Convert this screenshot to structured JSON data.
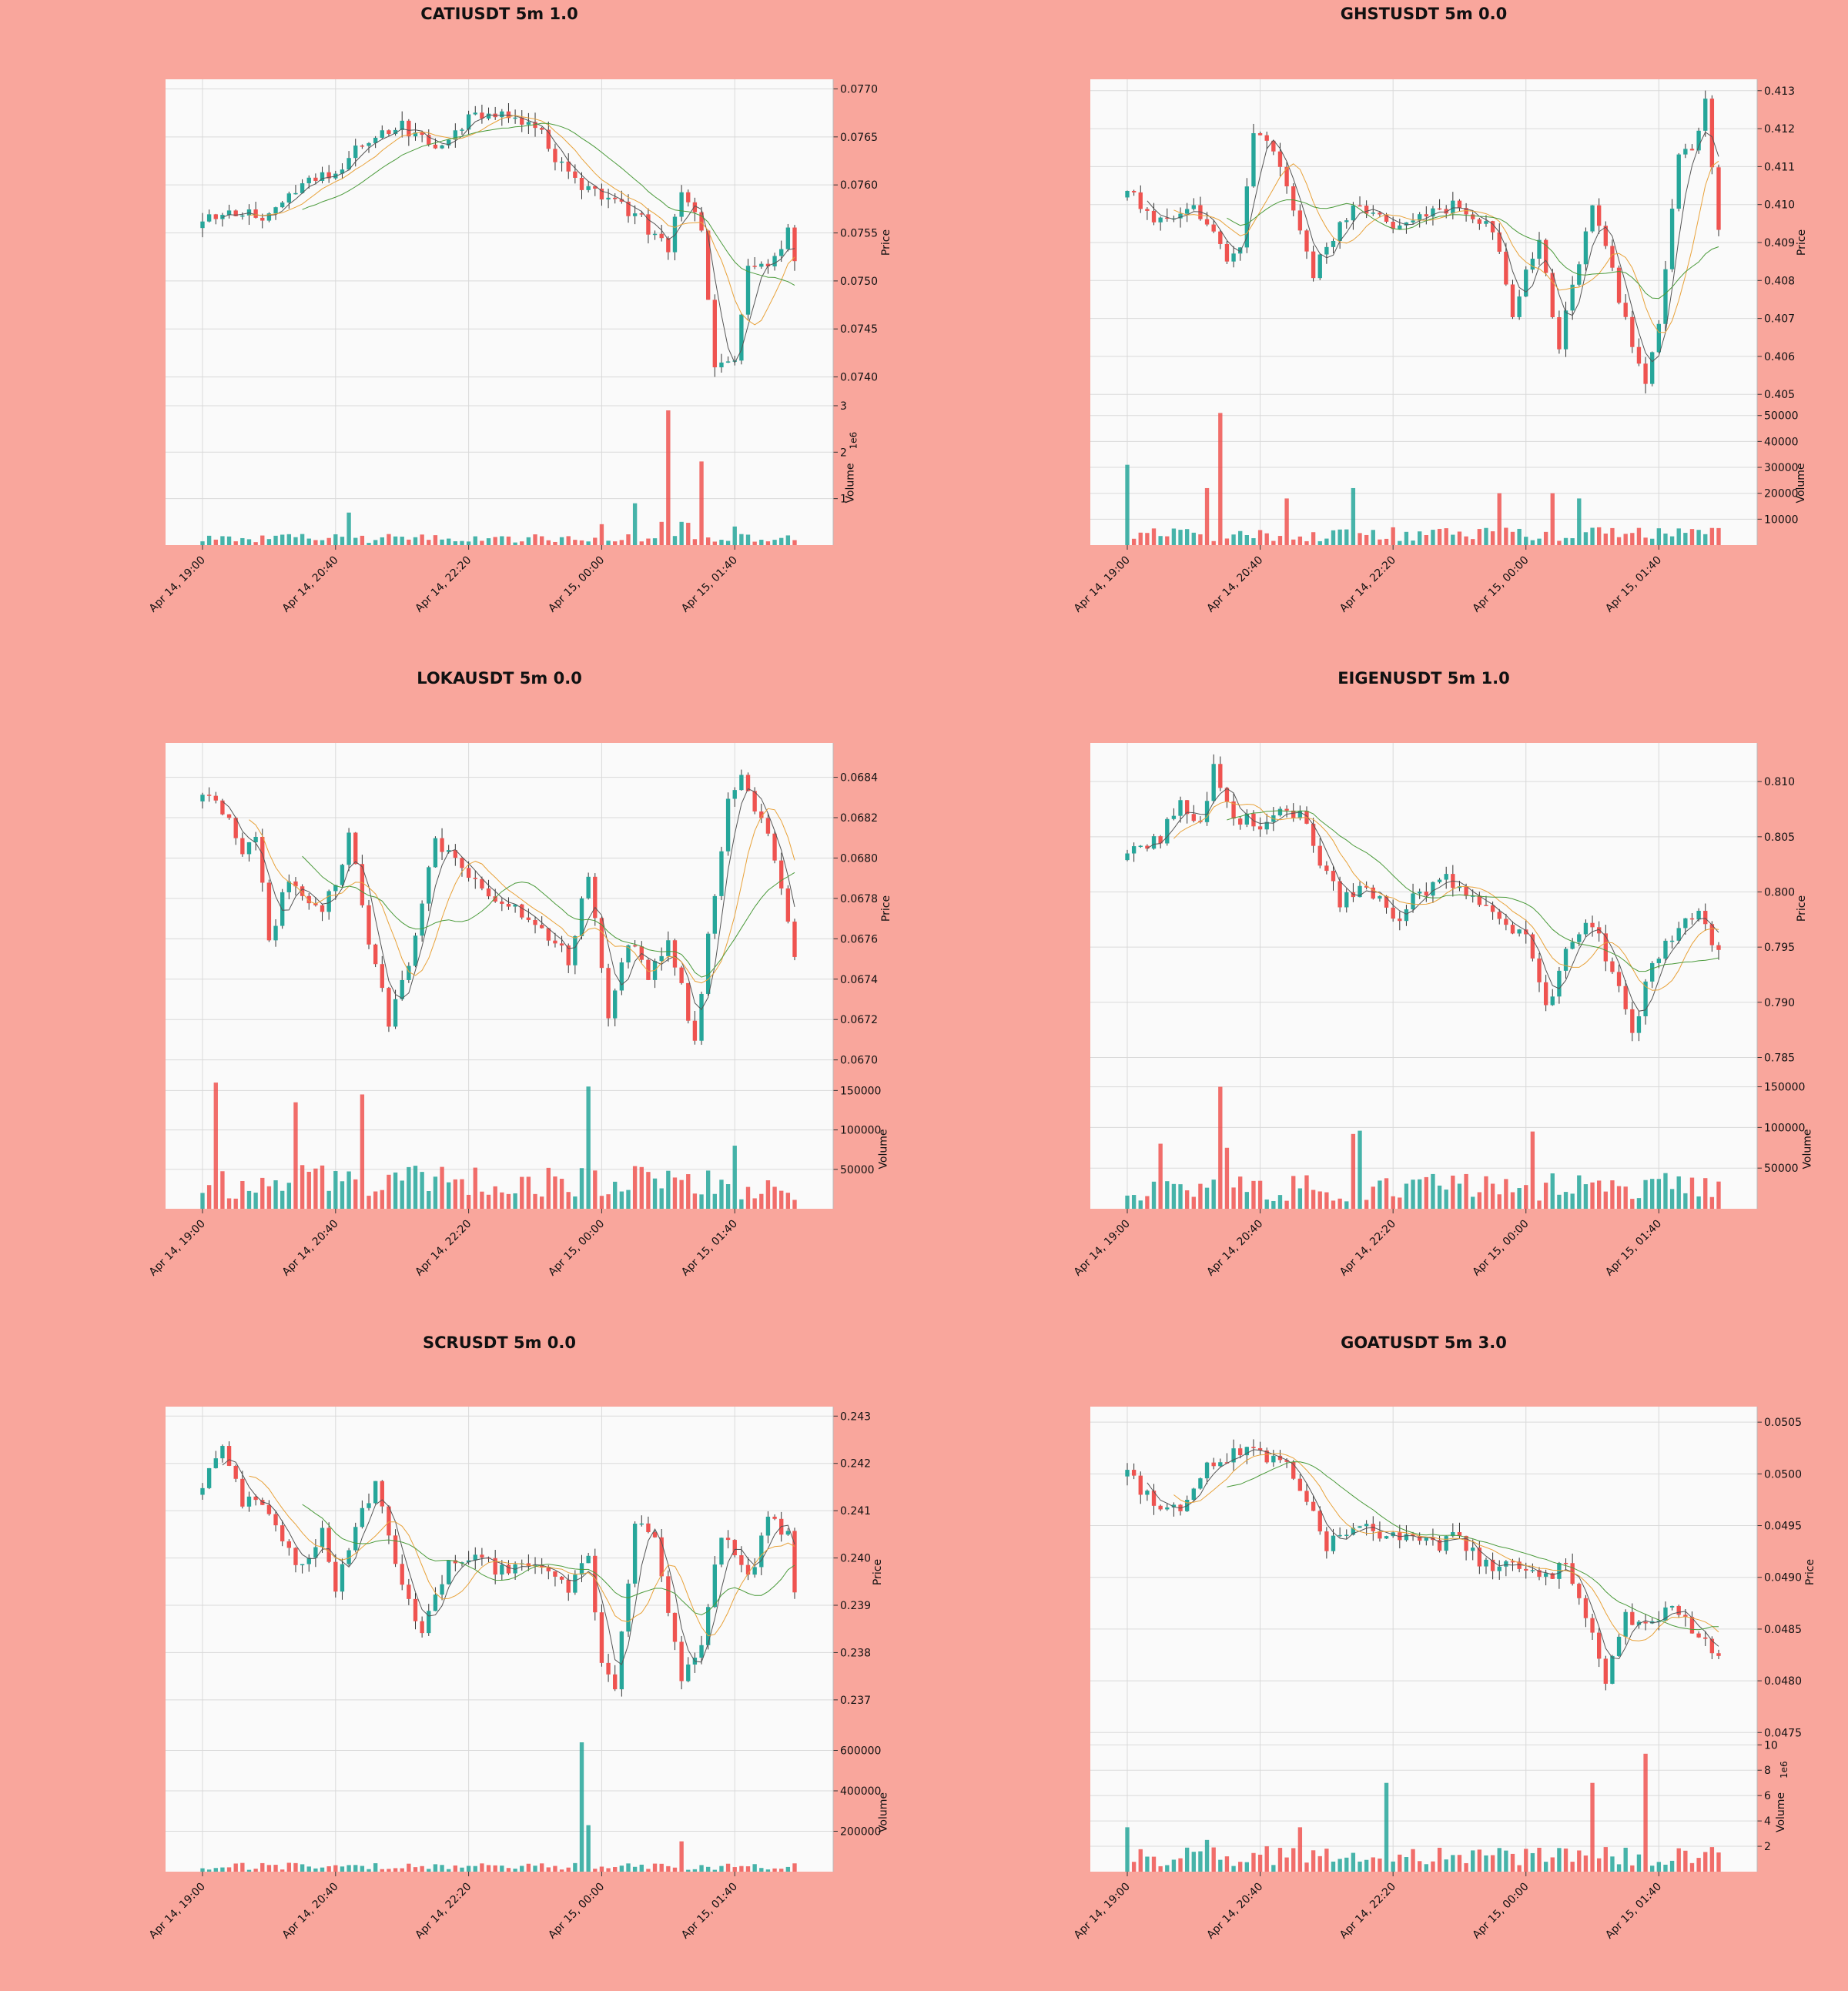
{
  "figure": {
    "background": "#f9a69c",
    "panel_background": "#fafafa",
    "grid_color": "#d9d9d9",
    "up_color": "#26a69a",
    "down_color": "#ef5350",
    "ma_colors": [
      "#555555",
      "#e8a23a",
      "#4a9a3a"
    ]
  },
  "chart_data": [
    {
      "type": "candlestick",
      "title": "CATIUSDT 5m 1.0",
      "price_label": "Price",
      "volume_label": "Volume",
      "volume_exponent": "1e6",
      "x_tick_labels": [
        "Apr 14, 19:00",
        "Apr 14, 20:40",
        "Apr 14, 22:20",
        "Apr 15, 00:00",
        "Apr 15, 01:40"
      ],
      "n_candles": 90,
      "price_ticks": [
        0.074,
        0.0745,
        0.075,
        0.0755,
        0.076,
        0.0765,
        0.077
      ],
      "price_tick_labels": [
        "0.0740",
        "0.0745",
        "0.0750",
        "0.0755",
        "0.0760",
        "0.0765",
        "0.0770"
      ],
      "ylim": [
        0.0737,
        0.0771
      ],
      "volume_ticks": [
        1,
        2,
        3
      ],
      "volume_tick_labels": [
        "1",
        "2",
        "3"
      ],
      "volume_ylim": [
        0,
        2.9
      ],
      "price_path": [
        [
          0,
          0.0756
        ],
        [
          5,
          0.0757
        ],
        [
          10,
          0.0757
        ],
        [
          15,
          0.076
        ],
        [
          20,
          0.0761
        ],
        [
          25,
          0.0765
        ],
        [
          30,
          0.0766
        ],
        [
          35,
          0.0764
        ],
        [
          40,
          0.0767
        ],
        [
          45,
          0.0768
        ],
        [
          50,
          0.0766
        ],
        [
          55,
          0.0761
        ],
        [
          60,
          0.0759
        ],
        [
          65,
          0.0757
        ],
        [
          70,
          0.0753
        ],
        [
          72,
          0.0759
        ],
        [
          75,
          0.0756
        ],
        [
          77,
          0.0741
        ],
        [
          80,
          0.0741
        ],
        [
          82,
          0.0752
        ],
        [
          85,
          0.0751
        ],
        [
          88,
          0.0755
        ],
        [
          89,
          0.0752
        ]
      ],
      "vol_base": 0.12,
      "vol_spikes": [
        [
          22,
          0.7
        ],
        [
          60,
          0.45
        ],
        [
          65,
          0.9
        ],
        [
          69,
          0.5
        ],
        [
          70,
          2.9
        ],
        [
          72,
          0.5
        ],
        [
          73,
          0.48
        ],
        [
          75,
          1.8
        ],
        [
          80,
          0.4
        ]
      ],
      "ma_len": [
        4,
        8,
        16
      ]
    },
    {
      "type": "candlestick",
      "title": "GHSTUSDT 5m 0.0",
      "price_label": "Price",
      "volume_label": "Volume",
      "volume_exponent": "",
      "x_tick_labels": [
        "Apr 14, 19:00",
        "Apr 14, 20:40",
        "Apr 14, 22:20",
        "Apr 15, 00:00",
        "Apr 15, 01:40"
      ],
      "n_candles": 90,
      "price_ticks": [
        0.405,
        0.406,
        0.407,
        0.408,
        0.409,
        0.41,
        0.411,
        0.412,
        0.413
      ],
      "price_tick_labels": [
        "0.405",
        "0.406",
        "0.407",
        "0.408",
        "0.409",
        "0.410",
        "0.411",
        "0.412",
        "0.413"
      ],
      "ylim": [
        0.4047,
        0.4133
      ],
      "volume_ticks": [
        10000,
        20000,
        30000,
        40000,
        50000
      ],
      "volume_tick_labels": [
        "10000",
        "20000",
        "30000",
        "40000",
        "50000"
      ],
      "volume_ylim": [
        0,
        52000
      ],
      "price_path": [
        [
          0,
          0.4103
        ],
        [
          5,
          0.4095
        ],
        [
          10,
          0.41
        ],
        [
          15,
          0.4085
        ],
        [
          17,
          0.4088
        ],
        [
          19,
          0.4118
        ],
        [
          22,
          0.4115
        ],
        [
          25,
          0.41
        ],
        [
          28,
          0.408
        ],
        [
          30,
          0.409
        ],
        [
          35,
          0.41
        ],
        [
          40,
          0.4095
        ],
        [
          45,
          0.4098
        ],
        [
          50,
          0.41
        ],
        [
          55,
          0.4093
        ],
        [
          58,
          0.4072
        ],
        [
          62,
          0.409
        ],
        [
          65,
          0.4063
        ],
        [
          70,
          0.41
        ],
        [
          75,
          0.407
        ],
        [
          78,
          0.4053
        ],
        [
          80,
          0.4068
        ],
        [
          83,
          0.4112
        ],
        [
          85,
          0.4115
        ],
        [
          87,
          0.4126
        ],
        [
          89,
          0.4093
        ]
      ],
      "vol_base": 3500,
      "vol_spikes": [
        [
          0,
          31000
        ],
        [
          14,
          51000
        ],
        [
          12,
          22000
        ],
        [
          24,
          18000
        ],
        [
          34,
          22000
        ],
        [
          56,
          20000
        ],
        [
          64,
          20000
        ],
        [
          68,
          18000
        ]
      ],
      "ma_len": [
        4,
        8,
        16
      ]
    },
    {
      "type": "candlestick",
      "title": "LOKAUSDT 5m 0.0",
      "price_label": "Price",
      "volume_label": "Volume",
      "volume_exponent": "",
      "x_tick_labels": [
        "Apr 14, 19:00",
        "Apr 14, 20:40",
        "Apr 14, 22:20",
        "Apr 15, 00:00",
        "Apr 15, 01:40"
      ],
      "n_candles": 90,
      "price_ticks": [
        0.067,
        0.0672,
        0.0674,
        0.0676,
        0.0678,
        0.068,
        0.0682,
        0.0684
      ],
      "price_tick_labels": [
        "0.0670",
        "0.0672",
        "0.0674",
        "0.0676",
        "0.0678",
        "0.0680",
        "0.0682",
        "0.0684"
      ],
      "ylim": [
        0.06693,
        0.06857
      ],
      "volume_ticks": [
        50000,
        100000,
        150000
      ],
      "volume_tick_labels": [
        "50000",
        "100000",
        "150000"
      ],
      "volume_ylim": [
        0,
        165000
      ],
      "price_path": [
        [
          0,
          0.0683
        ],
        [
          4,
          0.0682
        ],
        [
          6,
          0.068
        ],
        [
          8,
          0.0681
        ],
        [
          10,
          0.0676
        ],
        [
          13,
          0.0679
        ],
        [
          18,
          0.0677
        ],
        [
          22,
          0.0681
        ],
        [
          25,
          0.0676
        ],
        [
          28,
          0.0672
        ],
        [
          31,
          0.0675
        ],
        [
          35,
          0.0681
        ],
        [
          40,
          0.0679
        ],
        [
          45,
          0.0678
        ],
        [
          50,
          0.0677
        ],
        [
          55,
          0.0675
        ],
        [
          58,
          0.0679
        ],
        [
          61,
          0.0672
        ],
        [
          64,
          0.0676
        ],
        [
          67,
          0.0674
        ],
        [
          70,
          0.0676
        ],
        [
          74,
          0.0671
        ],
        [
          76,
          0.0676
        ],
        [
          79,
          0.0683
        ],
        [
          81,
          0.0684
        ],
        [
          85,
          0.0681
        ],
        [
          88,
          0.0677
        ],
        [
          89,
          0.0675
        ]
      ],
      "vol_base": 28000,
      "vol_spikes": [
        [
          2,
          160000
        ],
        [
          14,
          135000
        ],
        [
          24,
          145000
        ],
        [
          58,
          155000
        ],
        [
          80,
          80000
        ]
      ],
      "ma_len": [
        4,
        8,
        16
      ]
    },
    {
      "type": "candlestick",
      "title": "EIGENUSDT 5m 1.0",
      "price_label": "Price",
      "volume_label": "Volume",
      "volume_exponent": "",
      "x_tick_labels": [
        "Apr 14, 19:00",
        "Apr 14, 20:40",
        "Apr 14, 22:20",
        "Apr 15, 00:00",
        "Apr 15, 01:40"
      ],
      "n_candles": 90,
      "price_ticks": [
        0.785,
        0.79,
        0.795,
        0.8,
        0.805,
        0.81
      ],
      "price_tick_labels": [
        "0.785",
        "0.790",
        "0.795",
        "0.800",
        "0.805",
        "0.810"
      ],
      "ylim": [
        0.7835,
        0.8135
      ],
      "volume_ticks": [
        50000,
        100000,
        150000
      ],
      "volume_tick_labels": [
        "50000",
        "100000",
        "150000"
      ],
      "volume_ylim": [
        0,
        160000
      ],
      "price_path": [
        [
          0,
          0.8032
        ],
        [
          5,
          0.805
        ],
        [
          8,
          0.808
        ],
        [
          11,
          0.806
        ],
        [
          13,
          0.8115
        ],
        [
          16,
          0.807
        ],
        [
          20,
          0.806
        ],
        [
          23,
          0.8075
        ],
        [
          26,
          0.807
        ],
        [
          29,
          0.803
        ],
        [
          32,
          0.799
        ],
        [
          36,
          0.801
        ],
        [
          40,
          0.797
        ],
        [
          44,
          0.8
        ],
        [
          48,
          0.801
        ],
        [
          52,
          0.799
        ],
        [
          56,
          0.7975
        ],
        [
          60,
          0.796
        ],
        [
          63,
          0.7895
        ],
        [
          67,
          0.796
        ],
        [
          70,
          0.797
        ],
        [
          73,
          0.793
        ],
        [
          76,
          0.787
        ],
        [
          79,
          0.794
        ],
        [
          83,
          0.7965
        ],
        [
          86,
          0.7985
        ],
        [
          89,
          0.7945
        ]
      ],
      "vol_base": 22000,
      "vol_spikes": [
        [
          5,
          80000
        ],
        [
          14,
          150000
        ],
        [
          15,
          75000
        ],
        [
          34,
          92000
        ],
        [
          35,
          96000
        ],
        [
          61,
          95000
        ]
      ],
      "ma_len": [
        4,
        8,
        16
      ]
    },
    {
      "type": "candlestick",
      "title": "SCRUSDT 5m 0.0",
      "price_label": "Price",
      "volume_label": "Volume",
      "volume_exponent": "",
      "x_tick_labels": [
        "Apr 14, 19:00",
        "Apr 14, 20:40",
        "Apr 14, 22:20",
        "Apr 15, 00:00",
        "Apr 15, 01:40"
      ],
      "n_candles": 90,
      "price_ticks": [
        0.237,
        0.238,
        0.239,
        0.24,
        0.241,
        0.242,
        0.243
      ],
      "price_tick_labels": [
        "0.237",
        "0.238",
        "0.239",
        "0.240",
        "0.241",
        "0.242",
        "0.243"
      ],
      "ylim": [
        0.2362,
        0.2432
      ],
      "volume_ticks": [
        200000,
        400000,
        600000
      ],
      "volume_tick_labels": [
        "200000",
        "400000",
        "600000"
      ],
      "volume_ylim": [
        0,
        640000
      ],
      "price_path": [
        [
          0,
          0.2414
        ],
        [
          3,
          0.2425
        ],
        [
          6,
          0.2412
        ],
        [
          10,
          0.241
        ],
        [
          14,
          0.2398
        ],
        [
          18,
          0.2405
        ],
        [
          20,
          0.2393
        ],
        [
          23,
          0.2408
        ],
        [
          26,
          0.2415
        ],
        [
          30,
          0.2393
        ],
        [
          33,
          0.2384
        ],
        [
          37,
          0.24
        ],
        [
          42,
          0.24
        ],
        [
          45,
          0.2397
        ],
        [
          50,
          0.2398
        ],
        [
          55,
          0.2393
        ],
        [
          58,
          0.24
        ],
        [
          60,
          0.2378
        ],
        [
          62,
          0.2372
        ],
        [
          65,
          0.2408
        ],
        [
          68,
          0.2403
        ],
        [
          72,
          0.2375
        ],
        [
          75,
          0.2382
        ],
        [
          78,
          0.2405
        ],
        [
          82,
          0.2395
        ],
        [
          85,
          0.2408
        ],
        [
          88,
          0.2405
        ],
        [
          89,
          0.2392
        ]
      ],
      "vol_base": 22000,
      "vol_spikes": [
        [
          57,
          640000
        ],
        [
          58,
          230000
        ],
        [
          72,
          150000
        ]
      ],
      "ma_len": [
        4,
        8,
        16
      ]
    },
    {
      "type": "candlestick",
      "title": "GOATUSDT 5m 3.0",
      "price_label": "Price",
      "volume_label": "Volume",
      "volume_exponent": "1e6",
      "x_tick_labels": [
        "Apr 14, 19:00",
        "Apr 14, 20:40",
        "Apr 14, 22:20",
        "Apr 15, 00:00",
        "Apr 15, 01:40"
      ],
      "n_candles": 90,
      "price_ticks": [
        0.0475,
        0.048,
        0.0485,
        0.049,
        0.0495,
        0.05,
        0.0505
      ],
      "price_tick_labels": [
        "0.0475",
        "0.0480",
        "0.0485",
        "0.0490",
        "0.0495",
        "0.0500",
        "0.0505"
      ],
      "ylim": [
        0.04745,
        0.05065
      ],
      "volume_ticks": [
        2,
        4,
        6,
        8,
        10
      ],
      "volume_tick_labels": [
        "2",
        "4",
        "6",
        "8",
        "10"
      ],
      "volume_ylim": [
        0,
        10.2
      ],
      "price_path": [
        [
          0,
          0.05
        ],
        [
          4,
          0.0497
        ],
        [
          8,
          0.0497
        ],
        [
          12,
          0.0501
        ],
        [
          16,
          0.0502
        ],
        [
          20,
          0.0502
        ],
        [
          24,
          0.0501
        ],
        [
          28,
          0.0497
        ],
        [
          30,
          0.0493
        ],
        [
          34,
          0.0495
        ],
        [
          38,
          0.0494
        ],
        [
          42,
          0.0494
        ],
        [
          46,
          0.0493
        ],
        [
          50,
          0.0494
        ],
        [
          54,
          0.0491
        ],
        [
          58,
          0.0492
        ],
        [
          62,
          0.049
        ],
        [
          66,
          0.0491
        ],
        [
          70,
          0.0485
        ],
        [
          72,
          0.048
        ],
        [
          75,
          0.0486
        ],
        [
          78,
          0.0485
        ],
        [
          82,
          0.0487
        ],
        [
          85,
          0.0485
        ],
        [
          89,
          0.0482
        ]
      ],
      "vol_base": 1.0,
      "vol_spikes": [
        [
          0,
          3.5
        ],
        [
          39,
          7.0
        ],
        [
          70,
          7.0
        ],
        [
          78,
          9.3
        ],
        [
          26,
          3.5
        ],
        [
          12,
          2.5
        ]
      ],
      "ma_len": [
        4,
        8,
        16
      ]
    }
  ]
}
